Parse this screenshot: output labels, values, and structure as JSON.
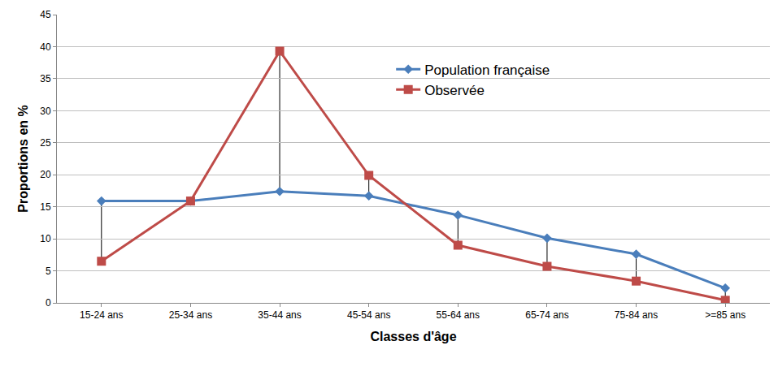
{
  "chart_data": {
    "type": "line",
    "x_label": "Classes d'âge",
    "y_label": "Proportions en %",
    "categories": [
      "15-24 ans",
      "25-34 ans",
      "35-44 ans",
      "45-54 ans",
      "55-64 ans",
      "65-74 ans",
      "75-84 ans",
      ">=85 ans"
    ],
    "series": [
      {
        "name": "Population française",
        "color": "#4a7ebb",
        "marker": "diamond",
        "values": [
          15.9,
          15.9,
          17.4,
          16.7,
          13.7,
          10.1,
          7.6,
          2.3
        ]
      },
      {
        "name": "Observée",
        "color": "#be4b48",
        "marker": "square",
        "values": [
          6.5,
          15.9,
          39.3,
          19.9,
          9.0,
          5.7,
          3.4,
          0.4
        ]
      }
    ],
    "ylim": [
      0,
      45
    ],
    "yticks": [
      0,
      5,
      10,
      15,
      20,
      25,
      30,
      35,
      40,
      45
    ],
    "grid": true,
    "legend": "upper center"
  }
}
